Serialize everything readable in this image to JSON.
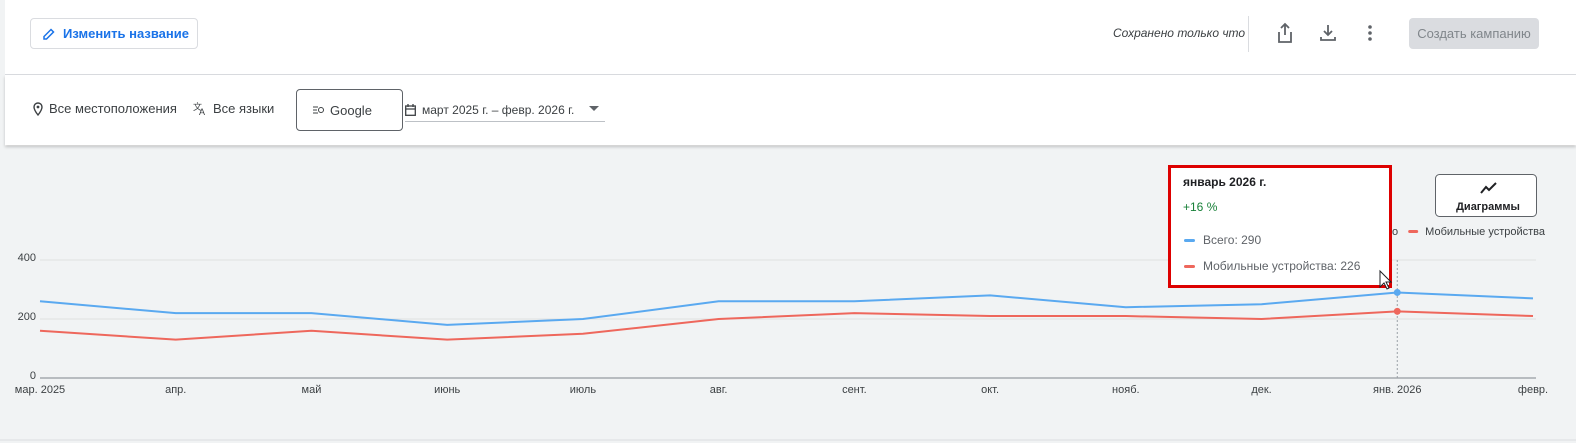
{
  "header": {
    "rename_button": "Изменить название",
    "save_status": "Сохранено только что",
    "create_button": "Создать кампанию"
  },
  "filters": {
    "location": "Все местоположения",
    "language": "Все языки",
    "network": "Google",
    "date_range": "март 2025 г. – февр. 2026 г."
  },
  "chart_button": "Диаграммы",
  "chart_data": {
    "type": "line",
    "categories": [
      "мар. 2025",
      "апр.",
      "май",
      "июнь",
      "июль",
      "авг.",
      "сент.",
      "окт.",
      "нояб.",
      "дек.",
      "янв. 2026",
      "февр."
    ],
    "series": [
      {
        "name": "Всего",
        "color": "#5aa9f0",
        "values": [
          260,
          220,
          220,
          180,
          200,
          260,
          260,
          280,
          240,
          250,
          290,
          270
        ]
      },
      {
        "name": "Мобильные устройства",
        "color": "#ee675c",
        "values": [
          160,
          130,
          160,
          130,
          150,
          200,
          220,
          210,
          210,
          200,
          226,
          210
        ]
      }
    ],
    "ylim": [
      0,
      400
    ],
    "yticks": [
      0,
      200,
      400
    ],
    "grid": true,
    "legend": "top-right",
    "tooltip": {
      "title": "январь 2026 г.",
      "change": "+16 %",
      "lines": [
        "Всего: 290",
        "Мобильные устройства: 226"
      ]
    }
  }
}
